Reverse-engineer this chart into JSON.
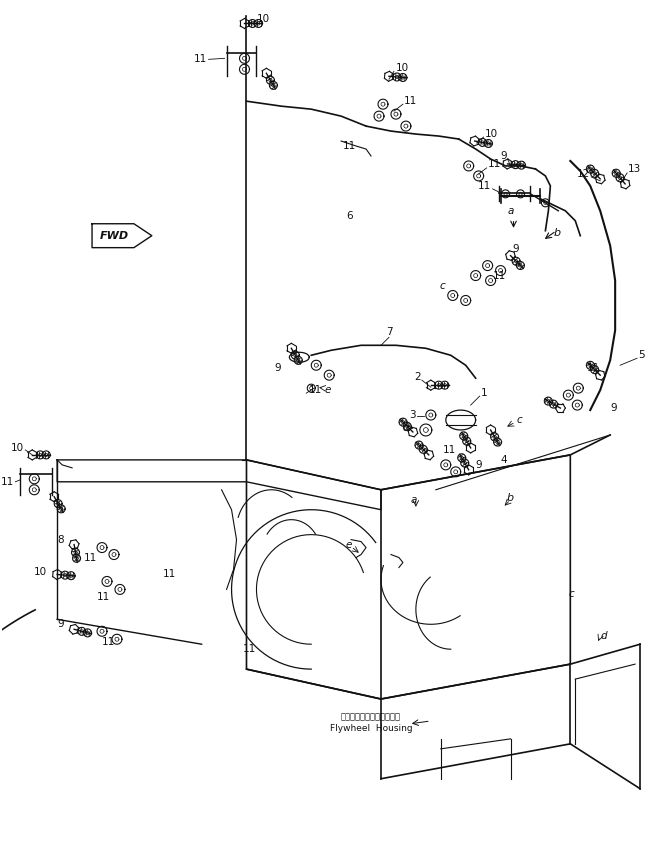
{
  "background_color": "#ffffff",
  "line_color": "#111111",
  "fig_width": 6.56,
  "fig_height": 8.57,
  "dpi": 100,
  "labels": {
    "flywheel_jp": "フライホイールハウジング",
    "flywheel_en": "Flywheel  Housing",
    "fwd": "FWD"
  }
}
